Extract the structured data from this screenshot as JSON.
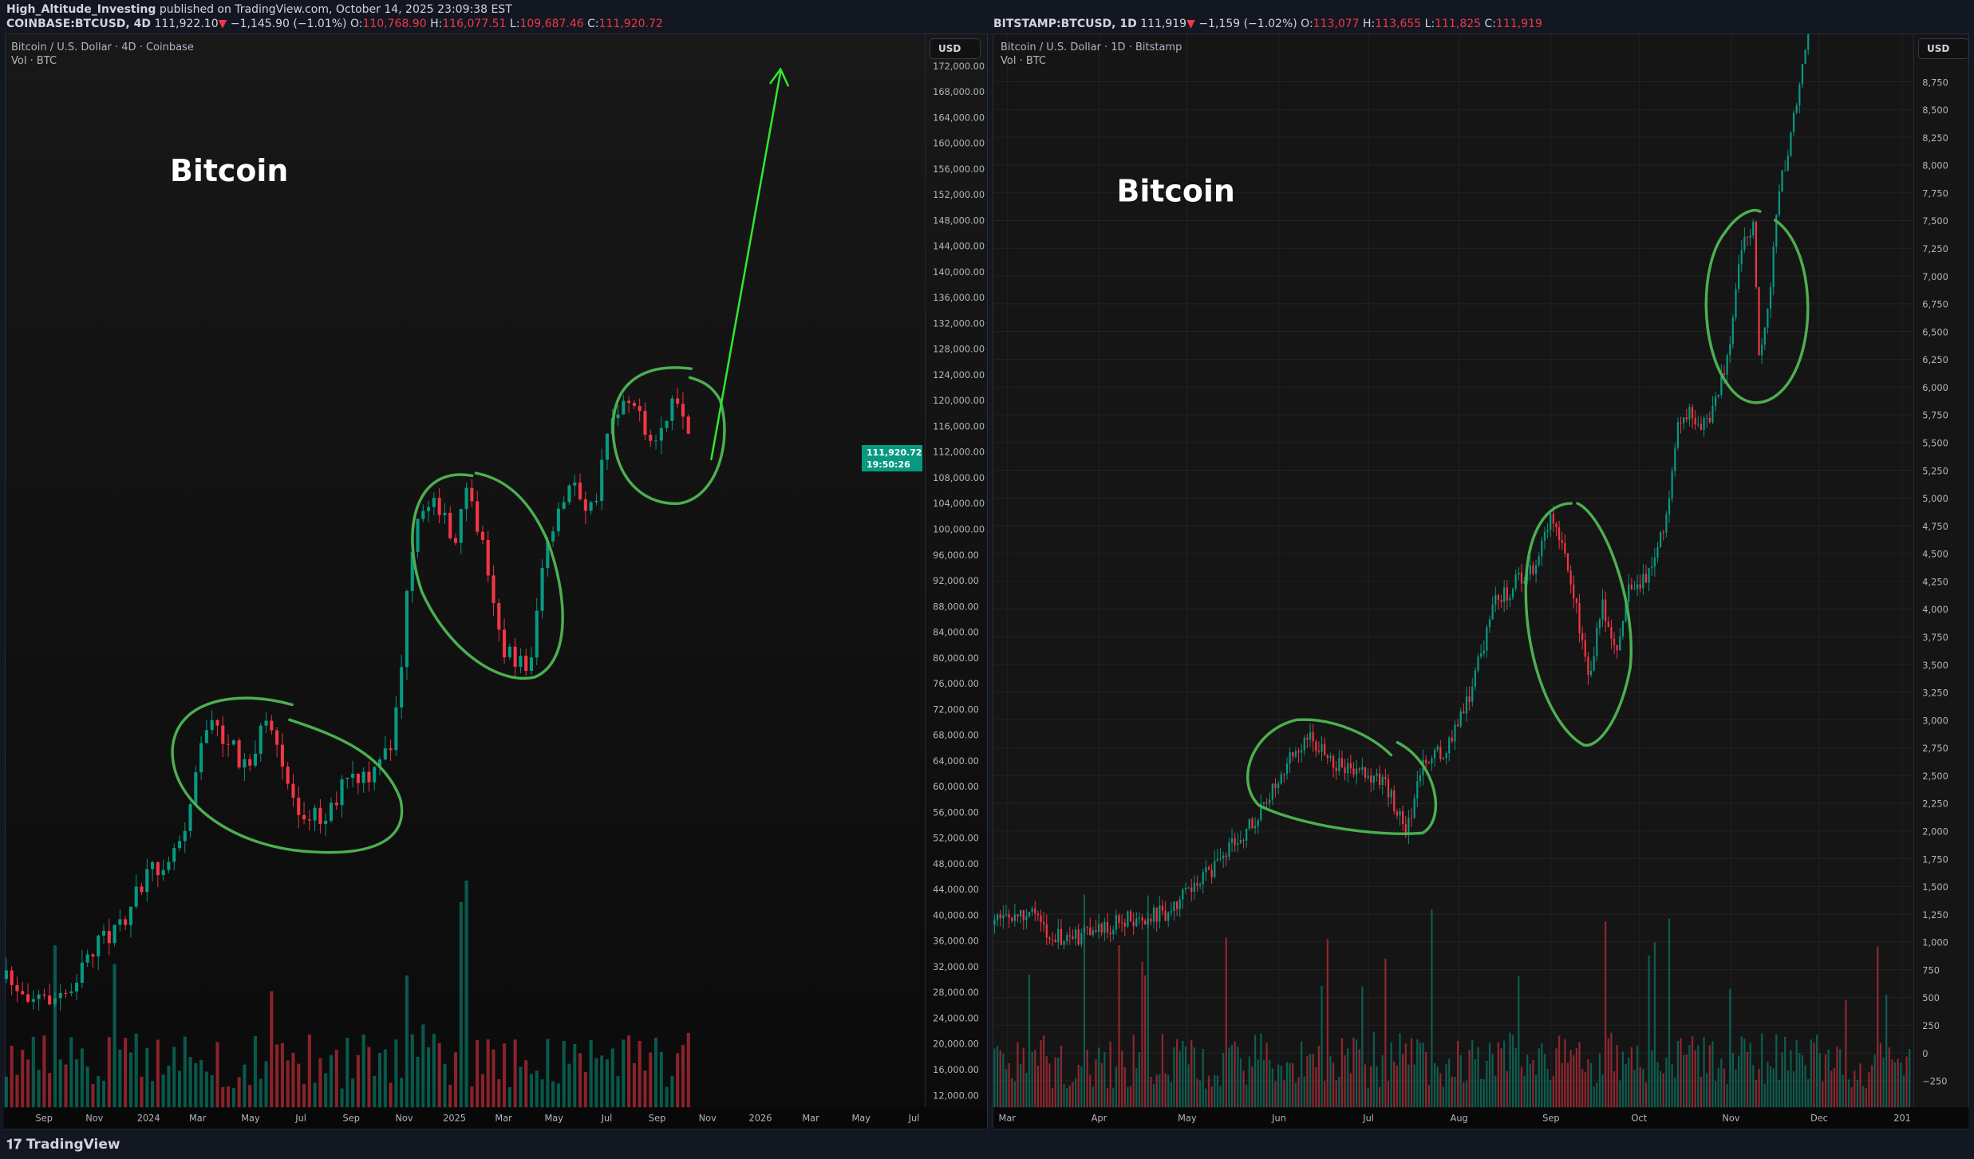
{
  "header": {
    "author": "High_Altitude_Investing",
    "published": "published on TradingView.com, October 14, 2025 23:09:38 EST"
  },
  "left_chart": {
    "symbol": "COINBASE:BTCUSD, 4D",
    "last": "111,922.10",
    "change": "−1,145.90 (−1.01%)",
    "open_label": "O:",
    "open": "110,768.90",
    "high_label": "H:",
    "high": "116,077.51",
    "low_label": "L:",
    "low": "109,687.46",
    "close_label": "C:",
    "close": "111,920.72",
    "legend_title": "Bitcoin / U.S. Dollar · 4D · Coinbase",
    "legend_vol": "Vol · BTC",
    "currency": "USD",
    "annotation": "Bitcoin",
    "price_tag": "111,920.72",
    "countdown": "19:50:26",
    "price_ticks": [
      "172,000.00",
      "168,000.00",
      "164,000.00",
      "160,000.00",
      "156,000.00",
      "152,000.00",
      "148,000.00",
      "144,000.00",
      "140,000.00",
      "136,000.00",
      "132,000.00",
      "128,000.00",
      "124,000.00",
      "120,000.00",
      "116,000.00",
      "112,000.00",
      "108,000.00",
      "104,000.00",
      "100,000.00",
      "96,000.00",
      "92,000.00",
      "88,000.00",
      "84,000.00",
      "80,000.00",
      "76,000.00",
      "72,000.00",
      "68,000.00",
      "64,000.00",
      "60,000.00",
      "56,000.00",
      "52,000.00",
      "48,000.00",
      "44,000.00",
      "40,000.00",
      "36,000.00",
      "32,000.00",
      "28,000.00",
      "24,000.00",
      "20,000.00",
      "16,000.00",
      "12,000.00"
    ],
    "time_ticks": [
      "Sep",
      "Nov",
      "2024",
      "Mar",
      "May",
      "Jul",
      "Sep",
      "Nov",
      "2025",
      "Mar",
      "May",
      "Jul",
      "Sep",
      "Nov",
      "2026",
      "Mar",
      "May",
      "Jul"
    ]
  },
  "right_chart": {
    "symbol": "BITSTAMP:BTCUSD, 1D",
    "last": "111,919",
    "change": "−1,159 (−1.02%)",
    "open_label": "O:",
    "open": "113,077",
    "high_label": "H:",
    "high": "113,655",
    "low_label": "L:",
    "low": "111,825",
    "close_label": "C:",
    "close": "111,919",
    "legend_title": "Bitcoin / U.S. Dollar · 1D · Bitstamp",
    "legend_vol": "Vol · BTC",
    "currency": "USD",
    "annotation": "Bitcoin",
    "price_ticks": [
      "8,750",
      "8,500",
      "8,250",
      "8,000",
      "7,750",
      "7,500",
      "7,250",
      "7,000",
      "6,750",
      "6,500",
      "6,250",
      "6,000",
      "5,750",
      "5,500",
      "5,250",
      "5,000",
      "4,750",
      "4,500",
      "4,250",
      "4,000",
      "3,750",
      "3,500",
      "3,250",
      "3,000",
      "2,750",
      "2,500",
      "2,250",
      "2,000",
      "1,750",
      "1,500",
      "1,250",
      "1,000",
      "750",
      "500",
      "250",
      "0",
      "−250"
    ],
    "time_ticks": [
      "Mar",
      "Apr",
      "May",
      "Jun",
      "Jul",
      "Aug",
      "Sep",
      "Oct",
      "Nov",
      "Dec",
      "201"
    ]
  },
  "footer": {
    "brand": "TradingView",
    "logo_icon": "tradingview-logo-icon"
  },
  "colors": {
    "up": "#089981",
    "down": "#f23645",
    "annotation": "#4caf50",
    "arrow": "#2ee82e",
    "background": "#131722",
    "pane": "#111111"
  }
}
